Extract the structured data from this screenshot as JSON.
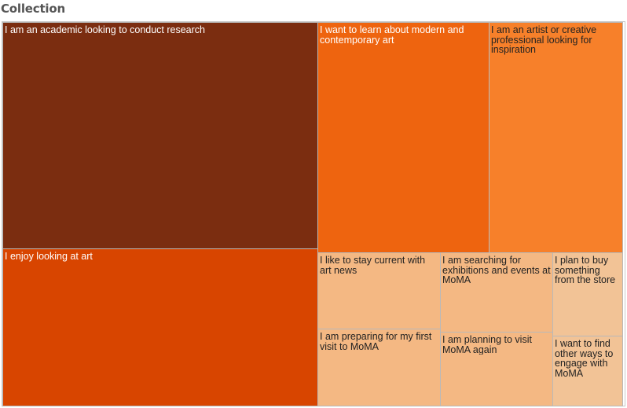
{
  "title": "Collection",
  "chart_data": {
    "type": "treemap",
    "title": "Collection",
    "items": [
      {
        "label": "I am an academic looking to conduct research",
        "value": 31.6,
        "color": "#7b2d10",
        "text_color": "#ffffff"
      },
      {
        "label": "I enjoy looking at art",
        "value": 21.8,
        "color": "#d84500",
        "text_color": "#ffffff"
      },
      {
        "label": "I want to learn about modern and contemporary art",
        "value": 15.4,
        "color": "#ee640f",
        "text_color": "#ffffff"
      },
      {
        "label": "I am an artist or creative professional looking for inspiration",
        "value": 12.2,
        "color": "#f7802a",
        "text_color": "#222222"
      },
      {
        "label": "I like to stay current with art news",
        "value": 3.5,
        "color": "#f4b883",
        "text_color": "#222222"
      },
      {
        "label": "I am preparing for my first visit to MoMA",
        "value": 3.3,
        "color": "#f4b883",
        "text_color": "#222222"
      },
      {
        "label": "I am searching for exhibitions and events at MoMA",
        "value": 3.4,
        "color": "#f4b883",
        "text_color": "#222222"
      },
      {
        "label": "I am planning to visit MoMA again",
        "value": 2.1,
        "color": "#f4b883",
        "text_color": "#222222"
      },
      {
        "label": "I plan to buy something from the store",
        "value": 2.4,
        "color": "#f2c396",
        "text_color": "#222222"
      },
      {
        "label": "I want to find other ways to engage with MoMA",
        "value": 2.4,
        "color": "#f2c396",
        "text_color": "#222222"
      }
    ]
  }
}
